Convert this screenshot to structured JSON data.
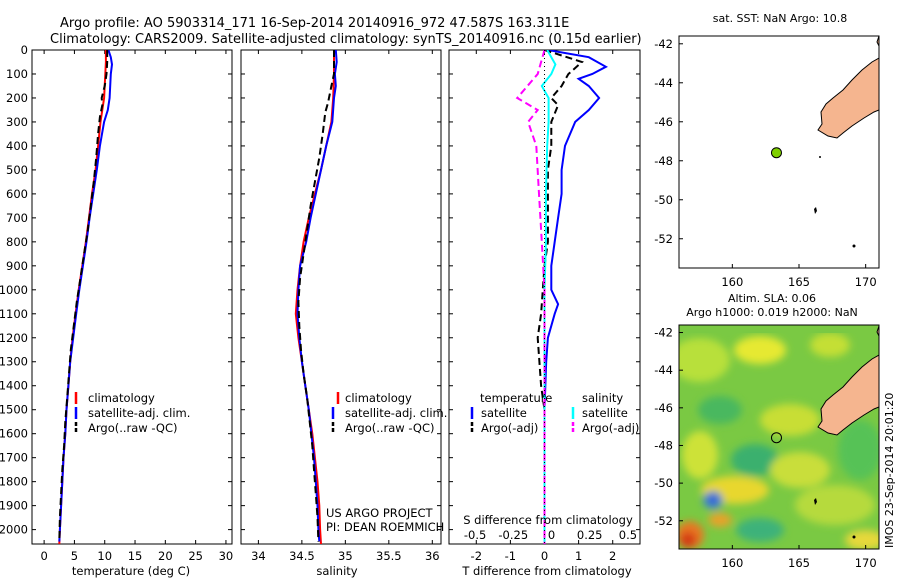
{
  "header": {
    "line1": "Argo profile: AO 5903314_171 16-Sep-2014 20140916_972 47.587S 163.311E",
    "line2": "Climatology: CARS2009. Satellite-adjusted climatology: synTS_20140916.nc (0.15d earlier)"
  },
  "colors": {
    "climatology": "#ff0000",
    "satellite": "#0000ff",
    "argo": "#000000",
    "salinity_satellite": "#00ffff",
    "salinity_argo": "#ff00ff",
    "land": "#f5b58f",
    "float_marker": "#7fd000"
  },
  "credits": {
    "project": "US ARGO PROJECT",
    "pi": "PI: DEAN ROEMMICH"
  },
  "watermark": "IMOS 23-Sep-2014 20:01:20",
  "chart_data": [
    {
      "id": "temperature",
      "type": "line",
      "xlabel": "temperature (deg C)",
      "ylabel": "",
      "xlim": [
        -2,
        31
      ],
      "ylim": [
        2060,
        0
      ],
      "y_reversed": true,
      "xticks": [
        0,
        5,
        10,
        15,
        20,
        25,
        30
      ],
      "yticks": [
        0,
        100,
        200,
        300,
        400,
        500,
        600,
        700,
        800,
        900,
        1000,
        1100,
        1200,
        1300,
        1400,
        1500,
        1600,
        1700,
        1800,
        1900,
        2000
      ],
      "legend": [
        "climatology",
        "satellite-adj. clim.",
        "Argo(..raw -QC)"
      ],
      "series": [
        {
          "name": "climatology",
          "style": "solid",
          "color": "#ff0000",
          "points": [
            [
              10.2,
              0
            ],
            [
              10.2,
              50
            ],
            [
              10.1,
              100
            ],
            [
              10.0,
              150
            ],
            [
              9.9,
              200
            ],
            [
              9.6,
              250
            ],
            [
              9.3,
              300
            ],
            [
              8.9,
              400
            ],
            [
              8.5,
              500
            ],
            [
              7.9,
              600
            ],
            [
              7.4,
              700
            ],
            [
              6.9,
              800
            ],
            [
              6.3,
              900
            ],
            [
              5.7,
              1000
            ],
            [
              5.2,
              1100
            ],
            [
              4.7,
              1200
            ],
            [
              4.3,
              1300
            ],
            [
              4.0,
              1400
            ],
            [
              3.7,
              1500
            ],
            [
              3.5,
              1600
            ],
            [
              3.2,
              1700
            ],
            [
              3.0,
              1800
            ],
            [
              2.8,
              1900
            ],
            [
              2.6,
              2000
            ],
            [
              2.5,
              2060
            ]
          ]
        },
        {
          "name": "satellite-adj. clim.",
          "style": "solid",
          "color": "#0000ff",
          "points": [
            [
              10.6,
              0
            ],
            [
              11.0,
              30
            ],
            [
              11.2,
              60
            ],
            [
              11.0,
              100
            ],
            [
              10.9,
              150
            ],
            [
              10.8,
              200
            ],
            [
              10.5,
              250
            ],
            [
              9.9,
              300
            ],
            [
              9.2,
              400
            ],
            [
              8.7,
              500
            ],
            [
              8.1,
              600
            ],
            [
              7.5,
              700
            ],
            [
              7.0,
              800
            ],
            [
              6.4,
              900
            ],
            [
              5.8,
              1000
            ],
            [
              5.3,
              1100
            ],
            [
              4.8,
              1200
            ],
            [
              4.3,
              1300
            ],
            [
              4.0,
              1400
            ],
            [
              3.7,
              1500
            ],
            [
              3.5,
              1600
            ],
            [
              3.2,
              1700
            ],
            [
              3.0,
              1800
            ],
            [
              2.8,
              1900
            ],
            [
              2.6,
              2000
            ],
            [
              2.5,
              2050
            ]
          ]
        },
        {
          "name": "Argo(..raw -QC)",
          "style": "dashed",
          "color": "#000000",
          "points": [
            [
              10.4,
              0
            ],
            [
              10.4,
              50
            ],
            [
              10.3,
              100
            ],
            [
              10.0,
              150
            ],
            [
              9.5,
              200
            ],
            [
              9.6,
              230
            ],
            [
              9.2,
              280
            ],
            [
              8.9,
              350
            ],
            [
              8.6,
              450
            ],
            [
              8.2,
              550
            ],
            [
              7.7,
              650
            ],
            [
              7.2,
              750
            ],
            [
              6.6,
              850
            ],
            [
              6.0,
              950
            ],
            [
              5.4,
              1050
            ],
            [
              4.9,
              1150
            ],
            [
              4.4,
              1250
            ],
            [
              4.1,
              1350
            ],
            [
              3.8,
              1450
            ],
            [
              3.5,
              1550
            ],
            [
              3.3,
              1650
            ],
            [
              3.0,
              1750
            ],
            [
              2.8,
              1850
            ],
            [
              2.6,
              1950
            ],
            [
              2.5,
              2050
            ]
          ]
        }
      ]
    },
    {
      "id": "salinity",
      "type": "line",
      "xlabel": "salinity",
      "xlim": [
        33.8,
        36.1
      ],
      "ylim": [
        2060,
        0
      ],
      "y_reversed": true,
      "xticks": [
        34,
        34.5,
        35,
        35.5,
        36
      ],
      "legend": [
        "climatology",
        "satellite-adj. clim.",
        "Argo(..raw -QC)"
      ],
      "series": [
        {
          "name": "climatology",
          "style": "solid",
          "color": "#ff0000",
          "points": [
            [
              34.87,
              0
            ],
            [
              34.87,
              100
            ],
            [
              34.86,
              200
            ],
            [
              34.84,
              300
            ],
            [
              34.78,
              400
            ],
            [
              34.72,
              500
            ],
            [
              34.65,
              600
            ],
            [
              34.58,
              700
            ],
            [
              34.52,
              800
            ],
            [
              34.48,
              900
            ],
            [
              34.45,
              1000
            ],
            [
              34.43,
              1100
            ],
            [
              34.46,
              1200
            ],
            [
              34.5,
              1300
            ],
            [
              34.54,
              1400
            ],
            [
              34.58,
              1500
            ],
            [
              34.62,
              1600
            ],
            [
              34.65,
              1700
            ],
            [
              34.68,
              1800
            ],
            [
              34.7,
              1900
            ],
            [
              34.71,
              2000
            ],
            [
              34.72,
              2060
            ]
          ]
        },
        {
          "name": "satellite-adj. clim.",
          "style": "solid",
          "color": "#0000ff",
          "points": [
            [
              34.89,
              0
            ],
            [
              34.9,
              50
            ],
            [
              34.88,
              100
            ],
            [
              34.89,
              150
            ],
            [
              34.87,
              200
            ],
            [
              34.85,
              300
            ],
            [
              34.78,
              400
            ],
            [
              34.72,
              500
            ],
            [
              34.66,
              600
            ],
            [
              34.6,
              700
            ],
            [
              34.55,
              800
            ],
            [
              34.48,
              900
            ],
            [
              34.46,
              1000
            ],
            [
              34.45,
              1100
            ],
            [
              34.47,
              1200
            ],
            [
              34.5,
              1300
            ],
            [
              34.54,
              1400
            ],
            [
              34.58,
              1500
            ],
            [
              34.61,
              1600
            ],
            [
              34.64,
              1700
            ],
            [
              34.66,
              1800
            ],
            [
              34.68,
              1900
            ],
            [
              34.69,
              2000
            ],
            [
              34.7,
              2050
            ]
          ]
        },
        {
          "name": "Argo(..raw -QC)",
          "style": "dashed",
          "color": "#000000",
          "points": [
            [
              34.87,
              0
            ],
            [
              34.87,
              100
            ],
            [
              34.84,
              150
            ],
            [
              34.8,
              220
            ],
            [
              34.77,
              260
            ],
            [
              34.74,
              350
            ],
            [
              34.7,
              450
            ],
            [
              34.65,
              550
            ],
            [
              34.6,
              650
            ],
            [
              34.56,
              750
            ],
            [
              34.52,
              850
            ],
            [
              34.48,
              950
            ],
            [
              34.46,
              1050
            ],
            [
              34.47,
              1150
            ],
            [
              34.49,
              1250
            ],
            [
              34.52,
              1350
            ],
            [
              34.56,
              1450
            ],
            [
              34.59,
              1550
            ],
            [
              34.62,
              1650
            ],
            [
              34.64,
              1750
            ],
            [
              34.66,
              1850
            ],
            [
              34.68,
              1950
            ],
            [
              34.69,
              2050
            ]
          ]
        }
      ]
    },
    {
      "id": "difference",
      "type": "line",
      "xlabel": "T difference from climatology",
      "toplabel": "S difference from climatology",
      "xlim": [
        -2.8,
        2.8
      ],
      "ylim": [
        2060,
        0
      ],
      "y_reversed": true,
      "xticks": [
        -2,
        -1,
        0,
        1,
        2
      ],
      "s_ticks": [
        "-0.5",
        "-0.25",
        "0",
        "0.25",
        "0.5"
      ],
      "legend_groups": [
        {
          "heading": "temperature",
          "items": [
            "satellite",
            "Argo(-adj)"
          ]
        },
        {
          "heading": "salinity",
          "items": [
            "satellite",
            "Argo(-adj)"
          ]
        }
      ],
      "series": [
        {
          "name": "temperature satellite",
          "style": "solid",
          "color": "#0000ff",
          "points": [
            [
              0.1,
              0
            ],
            [
              1.3,
              30
            ],
            [
              1.8,
              70
            ],
            [
              1.4,
              100
            ],
            [
              1.0,
              120
            ],
            [
              1.3,
              150
            ],
            [
              1.6,
              200
            ],
            [
              1.3,
              250
            ],
            [
              0.9,
              300
            ],
            [
              0.6,
              400
            ],
            [
              0.5,
              500
            ],
            [
              0.5,
              600
            ],
            [
              0.4,
              700
            ],
            [
              0.3,
              800
            ],
            [
              0.2,
              900
            ],
            [
              0.2,
              1000
            ],
            [
              0.4,
              1060
            ],
            [
              0.3,
              1100
            ],
            [
              0.1,
              1200
            ],
            [
              0.05,
              1300
            ],
            [
              0.0,
              1500
            ],
            [
              0.0,
              2060
            ]
          ]
        },
        {
          "name": "temperature Argo(-adj)",
          "style": "dashed",
          "color": "#000000",
          "points": [
            [
              0.0,
              0
            ],
            [
              1.1,
              50
            ],
            [
              0.7,
              100
            ],
            [
              0.5,
              150
            ],
            [
              0.2,
              200
            ],
            [
              0.4,
              230
            ],
            [
              0.2,
              300
            ],
            [
              0.2,
              400
            ],
            [
              0.1,
              500
            ],
            [
              0.1,
              600
            ],
            [
              0.1,
              800
            ],
            [
              0.0,
              900
            ],
            [
              -0.1,
              1100
            ],
            [
              -0.2,
              1200
            ],
            [
              -0.15,
              1300
            ],
            [
              -0.1,
              1400
            ],
            [
              0.0,
              1500
            ],
            [
              0.0,
              2060
            ]
          ]
        },
        {
          "name": "salinity satellite",
          "style": "solid",
          "color": "#00ffff",
          "points": [
            [
              0.02,
              0
            ],
            [
              0.08,
              60
            ],
            [
              0.05,
              100
            ],
            [
              -0.02,
              150
            ],
            [
              0.03,
              200
            ],
            [
              0.03,
              300
            ],
            [
              0.02,
              400
            ],
            [
              0.01,
              600
            ],
            [
              0.01,
              800
            ],
            [
              0.0,
              1000
            ],
            [
              0.0,
              2060
            ]
          ]
        },
        {
          "name": "salinity Argo(-adj)",
          "style": "dashed",
          "color": "#ff00ff",
          "points": [
            [
              0.0,
              0
            ],
            [
              -0.05,
              100
            ],
            [
              -0.2,
              200
            ],
            [
              -0.05,
              250
            ],
            [
              -0.12,
              300
            ],
            [
              -0.06,
              400
            ],
            [
              -0.04,
              600
            ],
            [
              -0.02,
              800
            ],
            [
              0.0,
              1000
            ],
            [
              0.0,
              2060
            ]
          ]
        }
      ]
    },
    {
      "id": "sst_map",
      "type": "scatter",
      "title": "sat. SST: NaN Argo: 10.8",
      "xlim": [
        156,
        171
      ],
      "ylim": [
        -53.5,
        -41.6
      ],
      "xticks": [
        160,
        165,
        170
      ],
      "yticks": [
        -42,
        -44,
        -46,
        -48,
        -50,
        -52
      ],
      "points": [
        [
          163.311,
          -47.587
        ]
      ]
    },
    {
      "id": "sla_map",
      "type": "heatmap",
      "title_lines": [
        "Altim. SLA: 0.06",
        "Argo h1000: 0.019 h2000: NaN"
      ],
      "xlim": [
        156,
        171
      ],
      "ylim": [
        -53.5,
        -41.6
      ],
      "xticks": [
        160,
        165,
        170
      ],
      "yticks": [
        -42,
        -44,
        -46,
        -48,
        -50,
        -52
      ],
      "points": [
        [
          163.311,
          -47.587
        ]
      ]
    }
  ]
}
